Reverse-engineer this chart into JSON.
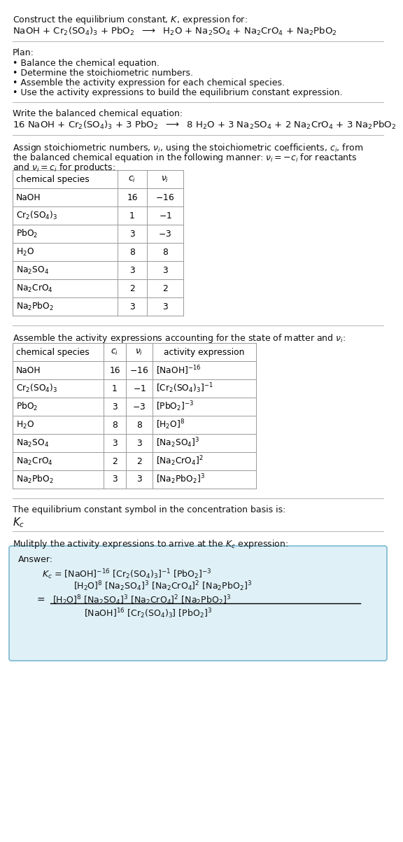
{
  "title_line1": "Construct the equilibrium constant, $K$, expression for:",
  "reaction_unbalanced": "NaOH + Cr$_2$(SO$_4$)$_3$ + PbO$_2$  $\\longrightarrow$  H$_2$O + Na$_2$SO$_4$ + Na$_2$CrO$_4$ + Na$_2$PbO$_2$",
  "plan_header": "Plan:",
  "plan_items": [
    "• Balance the chemical equation.",
    "• Determine the stoichiometric numbers.",
    "• Assemble the activity expression for each chemical species.",
    "• Use the activity expressions to build the equilibrium constant expression."
  ],
  "balanced_header": "Write the balanced chemical equation:",
  "balanced_eq": "16 NaOH + Cr$_2$(SO$_4$)$_3$ + 3 PbO$_2$  $\\longrightarrow$  8 H$_2$O + 3 Na$_2$SO$_4$ + 2 Na$_2$CrO$_4$ + 3 Na$_2$PbO$_2$",
  "stoich_intro1": "Assign stoichiometric numbers, $\\nu_i$, using the stoichiometric coefficients, $c_i$, from",
  "stoich_intro2": "the balanced chemical equation in the following manner: $\\nu_i = -c_i$ for reactants",
  "stoich_intro3": "and $\\nu_i = c_i$ for products:",
  "table1_headers": [
    "chemical species",
    "$c_i$",
    "$\\nu_i$"
  ],
  "table1_data": [
    [
      "NaOH",
      "16",
      "$-16$"
    ],
    [
      "Cr$_2$(SO$_4$)$_3$",
      "1",
      "$-1$"
    ],
    [
      "PbO$_2$",
      "3",
      "$-3$"
    ],
    [
      "H$_2$O",
      "8",
      "8"
    ],
    [
      "Na$_2$SO$_4$",
      "3",
      "3"
    ],
    [
      "Na$_2$CrO$_4$",
      "2",
      "2"
    ],
    [
      "Na$_2$PbO$_2$",
      "3",
      "3"
    ]
  ],
  "activity_intro": "Assemble the activity expressions accounting for the state of matter and $\\nu_i$:",
  "table2_headers": [
    "chemical species",
    "$c_i$",
    "$\\nu_i$",
    "activity expression"
  ],
  "table2_data": [
    [
      "NaOH",
      "16",
      "$-16$",
      "[NaOH]$^{-16}$"
    ],
    [
      "Cr$_2$(SO$_4$)$_3$",
      "1",
      "$-1$",
      "[Cr$_2$(SO$_4$)$_3$]$^{-1}$"
    ],
    [
      "PbO$_2$",
      "3",
      "$-3$",
      "[PbO$_2$]$^{-3}$"
    ],
    [
      "H$_2$O",
      "8",
      "8",
      "[H$_2$O]$^8$"
    ],
    [
      "Na$_2$SO$_4$",
      "3",
      "3",
      "[Na$_2$SO$_4$]$^3$"
    ],
    [
      "Na$_2$CrO$_4$",
      "2",
      "2",
      "[Na$_2$CrO$_4$]$^2$"
    ],
    [
      "Na$_2$PbO$_2$",
      "3",
      "3",
      "[Na$_2$PbO$_2$]$^3$"
    ]
  ],
  "kc_intro": "The equilibrium constant symbol in the concentration basis is:",
  "kc_symbol": "$K_c$",
  "multiply_intro": "Mulitply the activity expressions to arrive at the $K_c$ expression:",
  "answer_label": "Answer:",
  "answer_line1": "$K_c$ = [NaOH]$^{-16}$ [Cr$_2$(SO$_4$)$_3$]$^{-1}$ [PbO$_2$]$^{-3}$",
  "answer_line2": "[H$_2$O]$^8$ [Na$_2$SO$_4$]$^3$ [Na$_2$CrO$_4$]$^2$ [Na$_2$PbO$_2$]$^3$",
  "answer_eq": "=",
  "answer_num": "[H$_2$O]$^8$ [Na$_2$SO$_4$]$^3$ [Na$_2$CrO$_4$]$^2$ [Na$_2$PbO$_2$]$^3$",
  "answer_den": "[NaOH]$^{16}$ [Cr$_2$(SO$_4$)$_3$] [PbO$_2$]$^3$",
  "answer_box_color": "#dff0f7",
  "answer_border_color": "#7ab8d0",
  "bg_color": "#ffffff",
  "text_color": "#000000",
  "table_border_color": "#999999",
  "divider_color": "#bbbbbb"
}
